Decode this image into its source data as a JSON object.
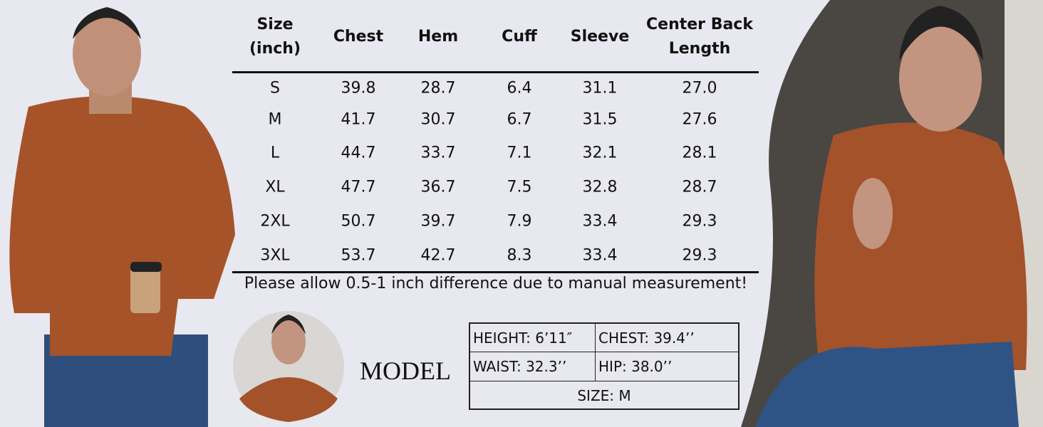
{
  "table": {
    "headers": [
      "Size (inch)",
      "Chest",
      "Hem",
      "Cuff",
      "Sleeve",
      "Center Back Length"
    ],
    "rows": [
      [
        "S",
        "39.8",
        "28.7",
        "6.4",
        "31.1",
        "27.0"
      ],
      [
        "M",
        "41.7",
        "30.7",
        "6.7",
        "31.5",
        "27.6"
      ],
      [
        "L",
        "44.7",
        "33.7",
        "7.1",
        "32.1",
        "28.1"
      ],
      [
        "XL",
        "47.7",
        "36.7",
        "7.5",
        "32.8",
        "28.7"
      ],
      [
        "2XL",
        "50.7",
        "39.7",
        "7.9",
        "33.4",
        "29.3"
      ],
      [
        "3XL",
        "53.7",
        "42.7",
        "8.3",
        "33.4",
        "29.3"
      ]
    ],
    "note": "Please allow 0.5-1 inch difference due to manual measurement!"
  },
  "model": {
    "label": "MODEL",
    "height": "HEIGHT: 6’11″",
    "chest": "CHEST: 39.4’’",
    "waist": "WAIST: 32.3’’",
    "hip": "HIP: 38.0’’",
    "size": "SIZE: M"
  }
}
